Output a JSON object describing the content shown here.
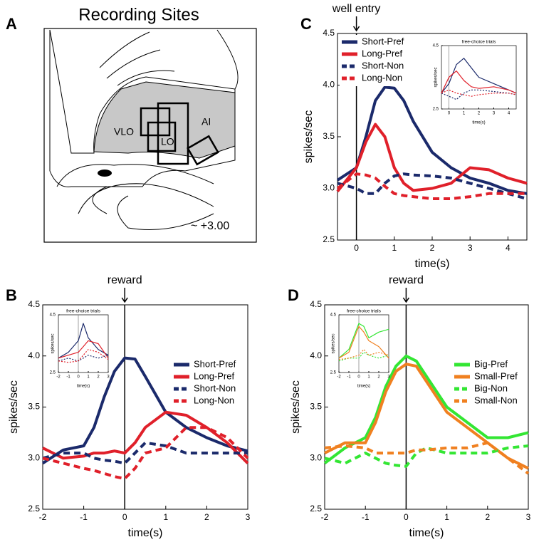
{
  "diagram": {
    "label": "A",
    "title": "Recording Sites",
    "regions": [
      "VLO",
      "LO",
      "AI"
    ],
    "coordinate": "~ +3.00"
  },
  "chart_data": [
    {
      "type": "line",
      "panel": "B",
      "annotation": "reward",
      "vline": 0,
      "xlabel": "time(s)",
      "ylabel": "spikes/sec",
      "legend": "upper right",
      "xlim": [
        -2,
        3
      ],
      "xticks": [
        -2,
        -1,
        0,
        1,
        2,
        3
      ],
      "ylim": [
        2.5,
        4.5
      ],
      "yticks": [
        2.5,
        {
          "value": 3,
          "label": "3.0"
        },
        3.5,
        {
          "value": 4,
          "label": "4.0"
        },
        4.5
      ],
      "x": [
        -2,
        -1.5,
        -1,
        -0.75,
        -0.5,
        -0.25,
        0,
        0.25,
        0.5,
        1,
        1.5,
        2,
        2.5,
        3
      ],
      "series": [
        {
          "name": "Short-Pref",
          "color": "#1b2a6b",
          "linestyle": "solid",
          "values": [
            2.95,
            3.08,
            3.12,
            3.3,
            3.6,
            3.85,
            3.98,
            3.97,
            3.8,
            3.45,
            3.3,
            3.2,
            3.12,
            3.07
          ]
        },
        {
          "name": "Long-Pref",
          "color": "#e0202a",
          "linestyle": "solid",
          "values": [
            3.1,
            3.0,
            3.02,
            3.05,
            3.05,
            3.07,
            3.05,
            3.15,
            3.3,
            3.45,
            3.42,
            3.3,
            3.15,
            2.95
          ]
        },
        {
          "name": "Short-Non",
          "color": "#1b2a6b",
          "linestyle": "dashed",
          "values": [
            3.0,
            3.05,
            3.05,
            3.0,
            2.98,
            2.97,
            2.95,
            3.05,
            3.15,
            3.12,
            3.05,
            3.05,
            3.05,
            3.05
          ]
        },
        {
          "name": "Long-Non",
          "color": "#e0202a",
          "linestyle": "dashed",
          "values": [
            3.0,
            2.95,
            2.9,
            2.88,
            2.85,
            2.82,
            2.8,
            2.9,
            3.05,
            3.1,
            3.3,
            3.3,
            3.2,
            3.0
          ]
        }
      ],
      "inset": {
        "type": "line",
        "title": "free-choice trials",
        "xlabel": "time(s)",
        "ylabel": "spikes/sec",
        "vline": 0,
        "xlim": [
          -2,
          3
        ],
        "xticks": [
          -2,
          -1,
          0,
          1,
          2,
          3
        ],
        "ylim": [
          2.5,
          4.5
        ],
        "yticks": [
          2.5,
          4.5
        ],
        "x": [
          -2,
          -1,
          0,
          0.5,
          1,
          2,
          3
        ],
        "series": [
          {
            "color": "#1b2a6b",
            "linestyle": "solid",
            "values": [
              3.0,
              3.2,
              3.6,
              4.2,
              3.7,
              3.3,
              3.1
            ]
          },
          {
            "color": "#e0202a",
            "linestyle": "solid",
            "values": [
              3.0,
              3.1,
              3.2,
              3.4,
              3.6,
              3.5,
              3.0
            ]
          },
          {
            "color": "#1b2a6b",
            "linestyle": "dashed",
            "values": [
              2.9,
              3.0,
              2.9,
              3.0,
              3.1,
              3.0,
              3.1
            ]
          },
          {
            "color": "#e0202a",
            "linestyle": "dashed",
            "values": [
              2.9,
              2.85,
              2.9,
              3.1,
              3.3,
              3.2,
              2.95
            ]
          }
        ]
      }
    },
    {
      "type": "line",
      "panel": "C",
      "annotation": "well entry",
      "vline": 0,
      "xlabel": "time(s)",
      "ylabel": "spikes/sec",
      "legend": "upper left",
      "xlim": [
        -0.5,
        4.5
      ],
      "xticks": [
        0,
        1,
        2,
        3,
        4
      ],
      "ylim": [
        2.5,
        4.5
      ],
      "yticks": [
        2.5,
        {
          "value": 3,
          "label": "3.0"
        },
        3.5,
        {
          "value": 4,
          "label": "4.0"
        },
        4.5
      ],
      "x": [
        -0.5,
        0,
        0.25,
        0.5,
        0.75,
        1,
        1.25,
        1.5,
        2,
        2.5,
        3,
        3.5,
        4,
        4.5
      ],
      "series": [
        {
          "name": "Short-Pref",
          "color": "#1b2a6b",
          "linestyle": "solid",
          "values": [
            3.08,
            3.2,
            3.5,
            3.85,
            3.98,
            3.97,
            3.85,
            3.65,
            3.35,
            3.2,
            3.1,
            3.05,
            2.98,
            2.95
          ]
        },
        {
          "name": "Long-Pref",
          "color": "#e0202a",
          "linestyle": "solid",
          "values": [
            2.97,
            3.2,
            3.45,
            3.62,
            3.5,
            3.2,
            3.05,
            2.98,
            3.0,
            3.05,
            3.2,
            3.18,
            3.1,
            3.05
          ]
        },
        {
          "name": "Short-Non",
          "color": "#1b2a6b",
          "linestyle": "dashed",
          "values": [
            3.05,
            3.0,
            2.95,
            2.95,
            3.05,
            3.12,
            3.14,
            3.13,
            3.12,
            3.1,
            3.05,
            3.0,
            2.95,
            2.9
          ]
        },
        {
          "name": "Long-Non",
          "color": "#e0202a",
          "linestyle": "dashed",
          "values": [
            3.0,
            3.14,
            3.13,
            3.1,
            3.02,
            2.95,
            2.93,
            2.92,
            2.9,
            2.9,
            2.92,
            2.95,
            2.95,
            2.95
          ]
        }
      ],
      "inset": {
        "type": "line",
        "title": "free-choice trials",
        "xlabel": "time(s)",
        "ylabel": "spikes/sec",
        "vline": 0,
        "xlim": [
          -0.5,
          4.5
        ],
        "xticks": [
          0,
          1,
          2,
          3,
          4
        ],
        "ylim": [
          2.5,
          4.5
        ],
        "yticks": [
          2.5,
          4.5
        ],
        "x": [
          -0.5,
          0,
          0.5,
          1,
          1.5,
          2,
          3,
          4,
          4.5
        ],
        "series": [
          {
            "color": "#1b2a6b",
            "linestyle": "solid",
            "values": [
              3.0,
              3.3,
              3.9,
              4.1,
              3.8,
              3.5,
              3.3,
              3.1,
              3.0
            ]
          },
          {
            "color": "#e0202a",
            "linestyle": "solid",
            "values": [
              3.0,
              3.5,
              3.7,
              3.4,
              3.2,
              3.15,
              3.2,
              3.1,
              3.0
            ]
          },
          {
            "color": "#1b2a6b",
            "linestyle": "dashed",
            "values": [
              3.0,
              2.9,
              2.8,
              3.0,
              3.1,
              3.1,
              3.05,
              3.0,
              2.95
            ]
          },
          {
            "color": "#e0202a",
            "linestyle": "dashed",
            "values": [
              3.0,
              3.1,
              3.0,
              2.95,
              2.9,
              2.95,
              3.0,
              3.0,
              2.95
            ]
          }
        ]
      }
    },
    {
      "type": "line",
      "panel": "D",
      "annotation": "reward",
      "vline": 0,
      "xlabel": "time(s)",
      "ylabel": "spikes/sec",
      "legend": "upper right",
      "xlim": [
        -2,
        3
      ],
      "xticks": [
        -2,
        -1,
        0,
        1,
        2,
        3
      ],
      "ylim": [
        2.5,
        4.5
      ],
      "yticks": [
        2.5,
        {
          "value": 3,
          "label": "3.0"
        },
        3.5,
        {
          "value": 4,
          "label": "4.0"
        },
        4.5
      ],
      "x": [
        -2,
        -1.5,
        -1,
        -0.75,
        -0.5,
        -0.25,
        0,
        0.25,
        0.5,
        1,
        1.5,
        2,
        2.5,
        3
      ],
      "series": [
        {
          "name": "Big-Pref",
          "color": "#33e633",
          "linestyle": "solid",
          "values": [
            2.95,
            3.1,
            3.2,
            3.4,
            3.7,
            3.9,
            4.0,
            3.95,
            3.8,
            3.5,
            3.35,
            3.2,
            3.2,
            3.25
          ]
        },
        {
          "name": "Small-Pref",
          "color": "#f08020",
          "linestyle": "solid",
          "values": [
            3.05,
            3.15,
            3.15,
            3.35,
            3.65,
            3.85,
            3.92,
            3.9,
            3.75,
            3.45,
            3.3,
            3.15,
            3.0,
            2.9
          ]
        },
        {
          "name": "Big-Non",
          "color": "#33e633",
          "linestyle": "dashed",
          "values": [
            3.0,
            2.95,
            3.05,
            3.0,
            2.95,
            2.93,
            2.92,
            3.05,
            3.1,
            3.05,
            3.05,
            3.05,
            3.1,
            3.12
          ]
        },
        {
          "name": "Small-Non",
          "color": "#f08020",
          "linestyle": "dashed",
          "values": [
            3.1,
            3.12,
            3.1,
            3.05,
            3.05,
            3.05,
            3.05,
            3.08,
            3.08,
            3.1,
            3.1,
            3.15,
            3.0,
            2.85
          ]
        }
      ],
      "inset": {
        "type": "line",
        "title": "free-choice trials",
        "xlabel": "time(s)",
        "ylabel": "spikes/sec",
        "vline": 0,
        "xlim": [
          -2,
          3
        ],
        "xticks": [
          -2,
          -1,
          0,
          1,
          2,
          3
        ],
        "ylim": [
          2.5,
          4.5
        ],
        "yticks": [
          2.5,
          4.5
        ],
        "x": [
          -2,
          -1,
          0,
          0.5,
          1,
          2,
          3
        ],
        "series": [
          {
            "color": "#33e633",
            "linestyle": "solid",
            "values": [
              3.0,
              3.3,
              4.2,
              4.1,
              3.7,
              3.9,
              4.0
            ]
          },
          {
            "color": "#f08020",
            "linestyle": "solid",
            "values": [
              3.0,
              3.2,
              4.1,
              3.9,
              3.6,
              3.4,
              3.0
            ]
          },
          {
            "color": "#33e633",
            "linestyle": "dashed",
            "values": [
              2.9,
              3.0,
              3.0,
              3.2,
              3.1,
              3.0,
              3.1
            ]
          },
          {
            "color": "#f08020",
            "linestyle": "dashed",
            "values": [
              2.95,
              3.0,
              3.1,
              3.3,
              3.1,
              3.2,
              3.1
            ]
          }
        ]
      }
    }
  ]
}
